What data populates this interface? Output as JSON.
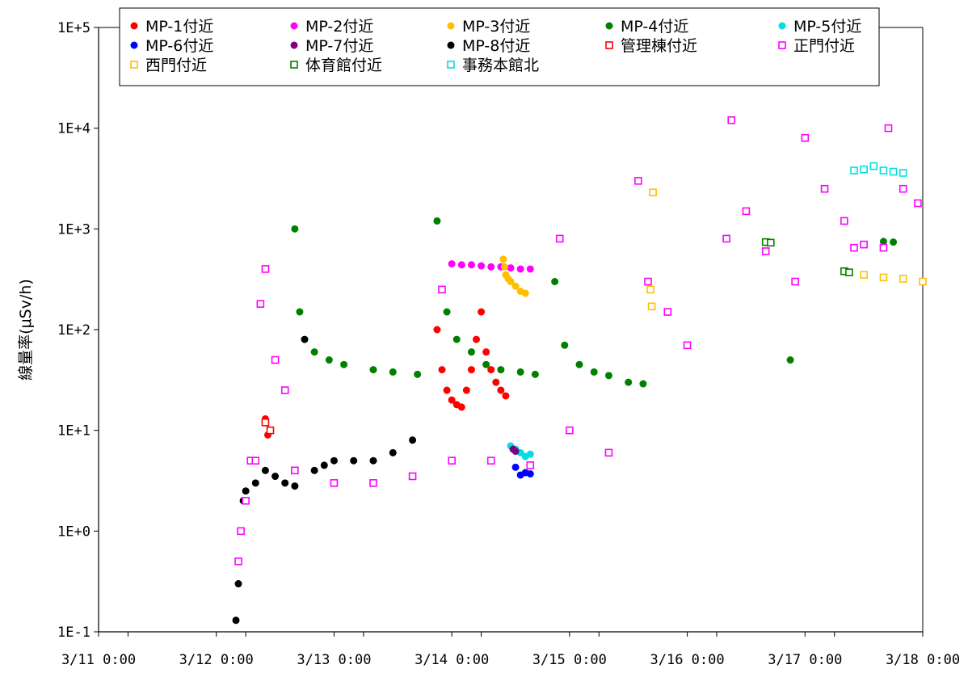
{
  "chart_data": {
    "type": "scatter",
    "title": "",
    "xlabel": "",
    "ylabel": "線量率(μSv/h)",
    "y_scale": "log",
    "ylim": [
      0.1,
      100000
    ],
    "xlim": [
      "3/11 0:00",
      "3/18 0:00"
    ],
    "x_ticks": [
      "3/11 0:00",
      "3/12 0:00",
      "3/13 0:00",
      "3/14 0:00",
      "3/15 0:00",
      "3/16 0:00",
      "3/17 0:00",
      "3/18 0:00"
    ],
    "y_ticks": [
      "1E-1",
      "1E+0",
      "1E+1",
      "1E+2",
      "1E+3",
      "1E+4",
      "1E+5"
    ],
    "grid": true,
    "legend_position": "top",
    "series": [
      {
        "name": "MP-1付近",
        "marker": "circle",
        "color": "#ff0000",
        "points": [
          [
            "3/12 10:00",
            13
          ],
          [
            "3/12 10:30",
            9
          ],
          [
            "3/13 21:00",
            100
          ],
          [
            "3/13 22:00",
            40
          ],
          [
            "3/13 23:00",
            25
          ],
          [
            "3/14 0:00",
            20
          ],
          [
            "3/14 1:00",
            18
          ],
          [
            "3/14 2:00",
            17
          ],
          [
            "3/14 3:00",
            25
          ],
          [
            "3/14 4:00",
            40
          ],
          [
            "3/14 5:00",
            80
          ],
          [
            "3/14 6:00",
            150
          ],
          [
            "3/14 7:00",
            60
          ],
          [
            "3/14 8:00",
            40
          ],
          [
            "3/14 9:00",
            30
          ],
          [
            "3/14 10:00",
            25
          ],
          [
            "3/14 11:00",
            22
          ]
        ]
      },
      {
        "name": "MP-2付近",
        "marker": "circle",
        "color": "#ff00ff",
        "points": [
          [
            "3/14 0:00",
            450
          ],
          [
            "3/14 2:00",
            440
          ],
          [
            "3/14 4:00",
            440
          ],
          [
            "3/14 6:00",
            430
          ],
          [
            "3/14 8:00",
            420
          ],
          [
            "3/14 10:00",
            420
          ],
          [
            "3/14 12:00",
            410
          ],
          [
            "3/14 14:00",
            400
          ],
          [
            "3/14 16:00",
            400
          ]
        ]
      },
      {
        "name": "MP-3付近",
        "marker": "circle",
        "color": "#ffc000",
        "points": [
          [
            "3/14 10:30",
            500
          ],
          [
            "3/14 10:45",
            420
          ],
          [
            "3/14 11:00",
            350
          ],
          [
            "3/14 11:30",
            320
          ],
          [
            "3/14 12:00",
            300
          ],
          [
            "3/14 13:00",
            270
          ],
          [
            "3/14 14:00",
            240
          ],
          [
            "3/14 15:00",
            230
          ]
        ]
      },
      {
        "name": "MP-4付近",
        "marker": "circle",
        "color": "#008000",
        "points": [
          [
            "3/12 16:00",
            1000
          ],
          [
            "3/12 17:00",
            150
          ],
          [
            "3/12 20:00",
            60
          ],
          [
            "3/12 23:00",
            50
          ],
          [
            "3/13 2:00",
            45
          ],
          [
            "3/13 8:00",
            40
          ],
          [
            "3/13 12:00",
            38
          ],
          [
            "3/13 17:00",
            36
          ],
          [
            "3/13 21:00",
            1200
          ],
          [
            "3/13 23:00",
            150
          ],
          [
            "3/14 1:00",
            80
          ],
          [
            "3/14 4:00",
            60
          ],
          [
            "3/14 7:00",
            45
          ],
          [
            "3/14 10:00",
            40
          ],
          [
            "3/14 14:00",
            38
          ],
          [
            "3/14 17:00",
            36
          ],
          [
            "3/14 21:00",
            300
          ],
          [
            "3/14 23:00",
            70
          ],
          [
            "3/15 2:00",
            45
          ],
          [
            "3/15 5:00",
            38
          ],
          [
            "3/15 8:00",
            35
          ],
          [
            "3/15 12:00",
            30
          ],
          [
            "3/15 15:00",
            29
          ],
          [
            "3/16 21:00",
            50
          ],
          [
            "3/17 16:00",
            750
          ],
          [
            "3/17 18:00",
            740
          ]
        ]
      },
      {
        "name": "MP-5付近",
        "marker": "circle",
        "color": "#00e0e0",
        "points": [
          [
            "3/14 12:00",
            7
          ],
          [
            "3/14 13:00",
            6.5
          ],
          [
            "3/14 14:00",
            6
          ],
          [
            "3/14 15:00",
            5.5
          ],
          [
            "3/14 16:00",
            5.8
          ]
        ]
      },
      {
        "name": "MP-6付近",
        "marker": "circle",
        "color": "#0000ff",
        "points": [
          [
            "3/14 13:00",
            4.3
          ],
          [
            "3/14 14:00",
            3.6
          ],
          [
            "3/14 15:00",
            3.8
          ],
          [
            "3/14 16:00",
            3.7
          ]
        ]
      },
      {
        "name": "MP-7付近",
        "marker": "circle",
        "color": "#800080",
        "points": [
          [
            "3/14 12:30",
            6.5
          ],
          [
            "3/14 13:00",
            6.2
          ]
        ]
      },
      {
        "name": "MP-8付近",
        "marker": "circle",
        "color": "#000000",
        "points": [
          [
            "3/12 4:00",
            0.13
          ],
          [
            "3/12 4:30",
            0.3
          ],
          [
            "3/12 5:00",
            1
          ],
          [
            "3/12 5:30",
            2
          ],
          [
            "3/12 6:00",
            2.5
          ],
          [
            "3/12 8:00",
            3
          ],
          [
            "3/12 10:00",
            4
          ],
          [
            "3/12 12:00",
            3.5
          ],
          [
            "3/12 14:00",
            3
          ],
          [
            "3/12 16:00",
            2.8
          ],
          [
            "3/12 18:00",
            80
          ],
          [
            "3/12 20:00",
            4
          ],
          [
            "3/12 22:00",
            4.5
          ],
          [
            "3/13 0:00",
            5
          ],
          [
            "3/13 4:00",
            5
          ],
          [
            "3/13 8:00",
            5
          ],
          [
            "3/13 12:00",
            6
          ],
          [
            "3/13 16:00",
            8
          ]
        ]
      },
      {
        "name": "管理棟付近",
        "marker": "square",
        "color": "#ff0000",
        "points": [
          [
            "3/12 10:00",
            12
          ],
          [
            "3/12 11:00",
            10
          ]
        ]
      },
      {
        "name": "正門付近",
        "marker": "square",
        "color": "#ff00ff",
        "points": [
          [
            "3/12 4:30",
            0.5
          ],
          [
            "3/12 5:00",
            1
          ],
          [
            "3/12 6:00",
            2
          ],
          [
            "3/12 7:00",
            5
          ],
          [
            "3/12 8:00",
            5
          ],
          [
            "3/12 9:00",
            180
          ],
          [
            "3/12 10:00",
            400
          ],
          [
            "3/12 12:00",
            50
          ],
          [
            "3/12 14:00",
            25
          ],
          [
            "3/12 16:00",
            4
          ],
          [
            "3/13 0:00",
            3
          ],
          [
            "3/13 8:00",
            3
          ],
          [
            "3/13 16:00",
            3.5
          ],
          [
            "3/13 22:00",
            250
          ],
          [
            "3/14 0:00",
            5
          ],
          [
            "3/14 8:00",
            5
          ],
          [
            "3/14 16:00",
            4.5
          ],
          [
            "3/14 22:00",
            800
          ],
          [
            "3/15 0:00",
            10
          ],
          [
            "3/15 8:00",
            6
          ],
          [
            "3/15 14:00",
            3000
          ],
          [
            "3/15 16:00",
            300
          ],
          [
            "3/15 20:00",
            150
          ],
          [
            "3/16 0:00",
            70
          ],
          [
            "3/16 8:00",
            800
          ],
          [
            "3/16 9:00",
            12000
          ],
          [
            "3/16 12:00",
            1500
          ],
          [
            "3/16 16:00",
            600
          ],
          [
            "3/16 22:00",
            300
          ],
          [
            "3/17 0:00",
            8000
          ],
          [
            "3/17 4:00",
            2500
          ],
          [
            "3/17 8:00",
            1200
          ],
          [
            "3/17 12:00",
            700
          ],
          [
            "3/17 16:00",
            650
          ],
          [
            "3/17 17:00",
            10000
          ],
          [
            "3/17 20:00",
            2500
          ],
          [
            "3/17 23:00",
            1800
          ],
          [
            "3/17 10:00",
            650
          ]
        ]
      },
      {
        "name": "西門付近",
        "marker": "square",
        "color": "#ffc000",
        "points": [
          [
            "3/15 17:00",
            2300
          ],
          [
            "3/15 16:30",
            250
          ],
          [
            "3/15 16:45",
            170
          ],
          [
            "3/17 8:00",
            380
          ],
          [
            "3/17 12:00",
            350
          ],
          [
            "3/17 16:00",
            330
          ],
          [
            "3/17 20:00",
            320
          ],
          [
            "3/18 0:00",
            300
          ]
        ]
      },
      {
        "name": "体育館付近",
        "marker": "square",
        "color": "#008000",
        "points": [
          [
            "3/16 16:00",
            740
          ],
          [
            "3/16 17:00",
            730
          ],
          [
            "3/17 8:00",
            380
          ],
          [
            "3/17 9:00",
            370
          ]
        ]
      },
      {
        "name": "事務本館北",
        "marker": "square",
        "color": "#00e0e0",
        "points": [
          [
            "3/17 10:00",
            3800
          ],
          [
            "3/17 12:00",
            3900
          ],
          [
            "3/17 14:00",
            4200
          ],
          [
            "3/17 16:00",
            3800
          ],
          [
            "3/17 18:00",
            3700
          ],
          [
            "3/17 20:00",
            3600
          ]
        ]
      }
    ]
  }
}
